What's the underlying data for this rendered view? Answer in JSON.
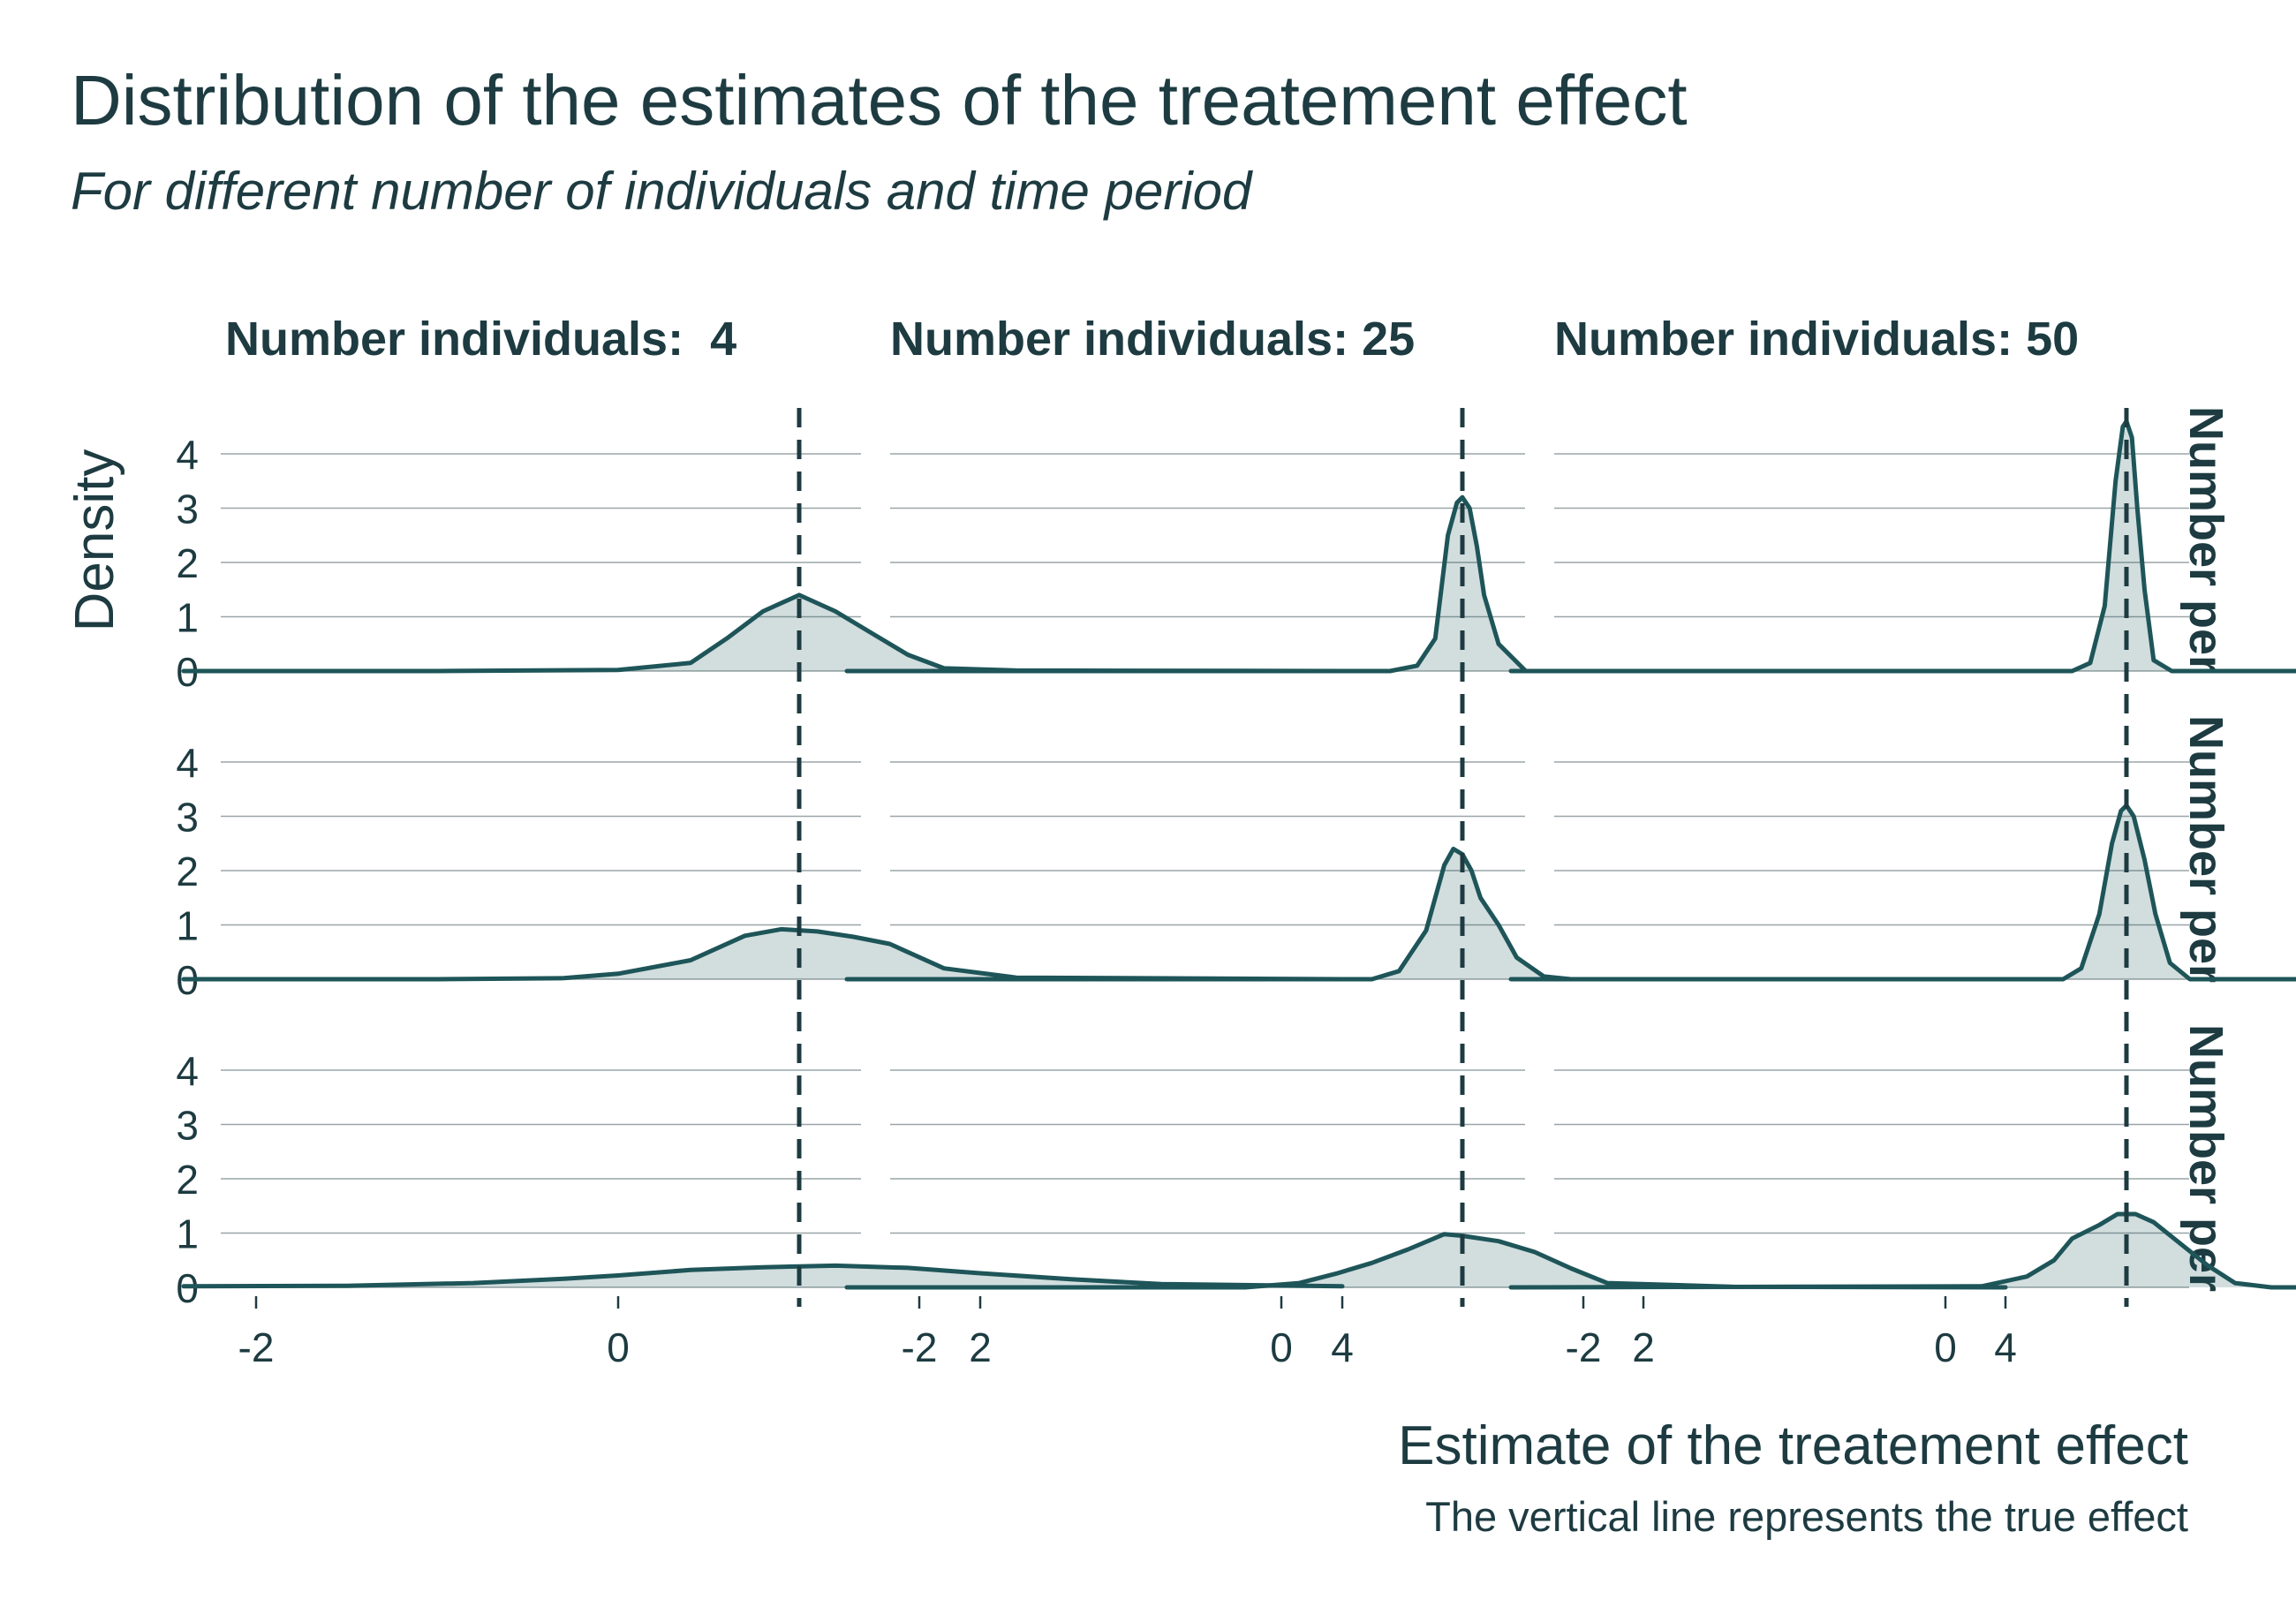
{
  "title": "Distribution of the estimates of the treatement effect",
  "subtitle": "For different number of individuals and time period",
  "caption": "The vertical line represents the true effect",
  "colors": {
    "line": "#1e5559",
    "fill": "#1e5559",
    "text": "#1d3b41",
    "grid": "#9aa5a7"
  },
  "chart_data": {
    "type": "area",
    "xlabel": "Estimate of the treatement effect",
    "ylabel": "Density",
    "xlim": [
      -2.5,
      4.2
    ],
    "ylim": [
      0,
      4.6
    ],
    "x_ticks": [
      -2,
      0,
      2,
      4
    ],
    "y_ticks": [
      0,
      1,
      2,
      3,
      4
    ],
    "true_effect": 1,
    "grid": "horizontal",
    "column_facets": [
      "Number individuals:  4",
      "Number individuals: 25",
      "Number individuals: 50"
    ],
    "row_facets": [
      "Number per",
      "Number per",
      "Number per"
    ],
    "panels": [
      {
        "row": 0,
        "col": 0,
        "x": [
          -2.4,
          -1.0,
          0.0,
          0.4,
          0.6,
          0.8,
          1.0,
          1.2,
          1.4,
          1.6,
          1.8,
          2.2,
          4.0
        ],
        "y": [
          0,
          0,
          0.02,
          0.15,
          0.6,
          1.1,
          1.4,
          1.1,
          0.7,
          0.3,
          0.05,
          0.01,
          0
        ]
      },
      {
        "row": 0,
        "col": 1,
        "x": [
          -2.4,
          0.6,
          0.75,
          0.85,
          0.92,
          0.97,
          1.0,
          1.04,
          1.08,
          1.12,
          1.2,
          1.35,
          4.0
        ],
        "y": [
          0,
          0,
          0.1,
          0.6,
          2.5,
          3.1,
          3.2,
          3.0,
          2.3,
          1.4,
          0.5,
          0,
          0
        ]
      },
      {
        "row": 0,
        "col": 2,
        "x": [
          -2.4,
          0.7,
          0.8,
          0.88,
          0.94,
          0.98,
          1.0,
          1.03,
          1.06,
          1.1,
          1.15,
          1.25,
          4.0
        ],
        "y": [
          0,
          0,
          0.15,
          1.2,
          3.5,
          4.5,
          4.6,
          4.3,
          3.0,
          1.5,
          0.2,
          0,
          0
        ]
      },
      {
        "row": 1,
        "col": 0,
        "x": [
          -2.4,
          -1.0,
          -0.3,
          0.0,
          0.4,
          0.7,
          0.9,
          1.1,
          1.3,
          1.5,
          1.8,
          2.2,
          4.0
        ],
        "y": [
          0,
          0,
          0.02,
          0.1,
          0.35,
          0.8,
          0.92,
          0.88,
          0.78,
          0.65,
          0.2,
          0.03,
          0
        ]
      },
      {
        "row": 1,
        "col": 1,
        "x": [
          -2.4,
          0.5,
          0.65,
          0.8,
          0.9,
          0.95,
          1.0,
          1.05,
          1.1,
          1.2,
          1.3,
          1.45,
          1.6,
          4.0
        ],
        "y": [
          0,
          0,
          0.15,
          0.9,
          2.1,
          2.4,
          2.3,
          2.0,
          1.5,
          1.0,
          0.4,
          0.05,
          0,
          0
        ]
      },
      {
        "row": 1,
        "col": 2,
        "x": [
          -2.4,
          0.65,
          0.75,
          0.85,
          0.92,
          0.97,
          1.0,
          1.04,
          1.1,
          1.16,
          1.24,
          1.35,
          4.0
        ],
        "y": [
          0,
          0,
          0.2,
          1.2,
          2.5,
          3.1,
          3.2,
          3.0,
          2.2,
          1.2,
          0.3,
          0,
          0
        ]
      },
      {
        "row": 2,
        "col": 0,
        "x": [
          -2.4,
          -1.5,
          -0.8,
          -0.3,
          0.0,
          0.4,
          0.8,
          1.2,
          1.6,
          2.0,
          2.5,
          3.0,
          3.5,
          4.0
        ],
        "y": [
          0.02,
          0.03,
          0.08,
          0.16,
          0.22,
          0.32,
          0.37,
          0.4,
          0.36,
          0.26,
          0.15,
          0.06,
          0.04,
          0.02
        ]
      },
      {
        "row": 2,
        "col": 1,
        "x": [
          -2.4,
          -0.2,
          0.1,
          0.3,
          0.5,
          0.7,
          0.9,
          1.0,
          1.2,
          1.4,
          1.6,
          1.8,
          2.5,
          4.0
        ],
        "y": [
          0,
          0,
          0.08,
          0.25,
          0.45,
          0.7,
          0.98,
          0.95,
          0.85,
          0.65,
          0.35,
          0.08,
          0.01,
          0
        ]
      },
      {
        "row": 2,
        "col": 2,
        "x": [
          -2.4,
          0.2,
          0.45,
          0.6,
          0.7,
          0.85,
          0.95,
          1.05,
          1.15,
          1.3,
          1.45,
          1.6,
          1.8,
          4.0
        ],
        "y": [
          0,
          0.02,
          0.2,
          0.5,
          0.9,
          1.15,
          1.35,
          1.35,
          1.2,
          0.8,
          0.4,
          0.08,
          0,
          0
        ]
      }
    ]
  }
}
